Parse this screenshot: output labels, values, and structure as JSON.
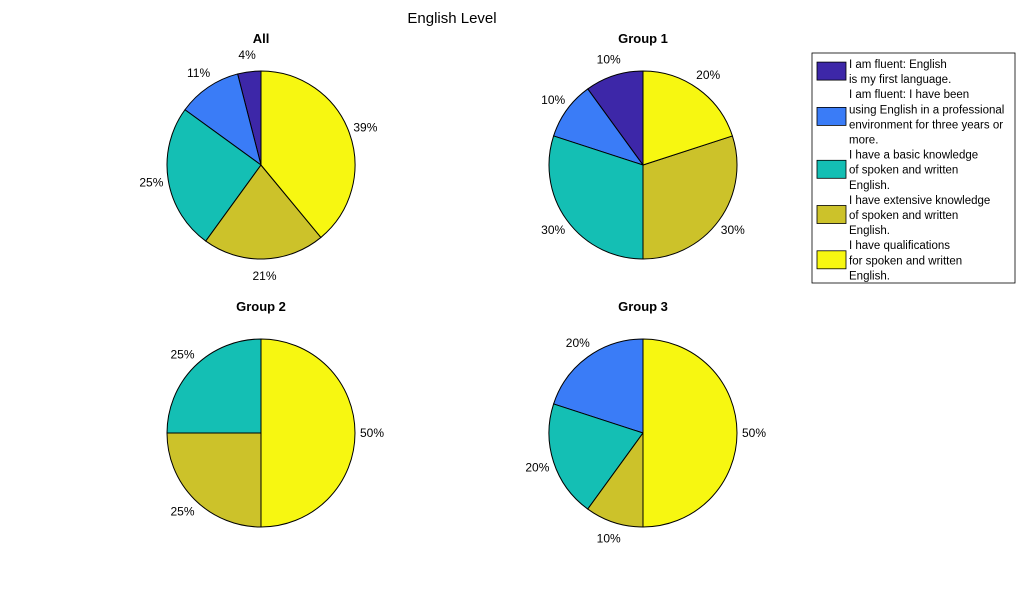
{
  "figure": {
    "title": "English Level"
  },
  "legend": {
    "entries": [
      {
        "lines": [
          "I am fluent: English",
          "is my first language."
        ],
        "color": "#3d27a8"
      },
      {
        "lines": [
          "I am fluent: I have been",
          "using English in a professional",
          "environment for three years or",
          "more."
        ],
        "color": "#3a7cf7"
      },
      {
        "lines": [
          "I have a basic knowledge",
          "of spoken and written",
          "English."
        ],
        "color": "#14bfb4"
      },
      {
        "lines": [
          "I have extensive knowledge",
          "of spoken and written",
          "English."
        ],
        "color": "#ccc22a"
      },
      {
        "lines": [
          "I have qualifications",
          "for spoken and written",
          "English."
        ],
        "color": "#f7f711"
      }
    ]
  },
  "chart_data": [
    {
      "type": "pie",
      "title": "All",
      "slices": [
        {
          "category": "I am fluent: English is my first language.",
          "value": 4,
          "label": "4%"
        },
        {
          "category": "I am fluent: I have been using English in a professional environment for three years or more.",
          "value": 11,
          "label": "11%"
        },
        {
          "category": "I have a basic knowledge of spoken and written English.",
          "value": 25,
          "label": "25%"
        },
        {
          "category": "I have extensive knowledge of spoken and written English.",
          "value": 21,
          "label": "21%"
        },
        {
          "category": "I have qualifications for spoken and written English.",
          "value": 39,
          "label": "39%"
        }
      ]
    },
    {
      "type": "pie",
      "title": "Group 1",
      "slices": [
        {
          "category": "I am fluent: English is my first language.",
          "value": 10,
          "label": "10%"
        },
        {
          "category": "I am fluent: I have been using English in a professional environment for three years or more.",
          "value": 10,
          "label": "10%"
        },
        {
          "category": "I have a basic knowledge of spoken and written English.",
          "value": 30,
          "label": "30%"
        },
        {
          "category": "I have extensive knowledge of spoken and written English.",
          "value": 30,
          "label": "30%"
        },
        {
          "category": "I have qualifications for spoken and written English.",
          "value": 20,
          "label": "20%"
        }
      ]
    },
    {
      "type": "pie",
      "title": "Group 2",
      "slices": [
        {
          "category": "I have a basic knowledge of spoken and written English.",
          "value": 25,
          "label": "25%"
        },
        {
          "category": "I have extensive knowledge of spoken and written English.",
          "value": 25,
          "label": "25%"
        },
        {
          "category": "I have qualifications for spoken and written English.",
          "value": 50,
          "label": "50%"
        }
      ]
    },
    {
      "type": "pie",
      "title": "Group 3",
      "slices": [
        {
          "category": "I am fluent: I have been using English in a professional environment for three years or more.",
          "value": 20,
          "label": "20%"
        },
        {
          "category": "I have a basic knowledge of spoken and written English.",
          "value": 20,
          "label": "20%"
        },
        {
          "category": "I have extensive knowledge of spoken and written English.",
          "value": 10,
          "label": "10%"
        },
        {
          "category": "I have qualifications for spoken and written English.",
          "value": 50,
          "label": "50%"
        }
      ]
    }
  ]
}
